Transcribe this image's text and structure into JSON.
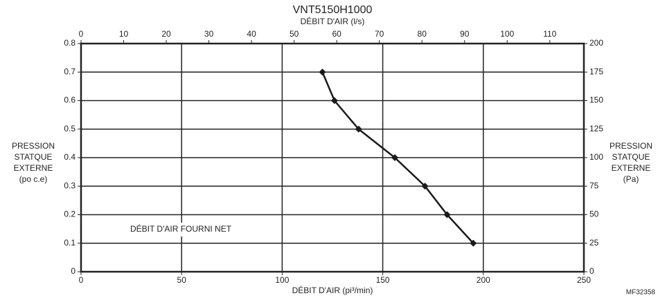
{
  "chart_data": {
    "type": "line",
    "title": "VNT5150H1000",
    "xlabel": "DÉBIT D'AIR (pi³/min)",
    "x2label": "DÉBIT D'AIR (l/s)",
    "ylabel": [
      "PRESSION",
      "STATQUE",
      "EXTERNE",
      "(po c.e)"
    ],
    "y2label": [
      "PRESSION",
      "STATQUE",
      "EXTERNE",
      "(Pa)"
    ],
    "annotation": "DÉBIT D'AIR FOURNI NET",
    "code": "MF32358",
    "x": [
      120,
      126,
      138,
      156,
      171,
      182,
      195
    ],
    "values": [
      0.7,
      0.6,
      0.5,
      0.4,
      0.3,
      0.2,
      0.1
    ],
    "color": "#1a1a1a",
    "xlim": [
      0,
      250
    ],
    "xticks": [
      0,
      50,
      100,
      150,
      200,
      250
    ],
    "x2lim": [
      0,
      118
    ],
    "x2ticks": [
      0,
      10,
      20,
      30,
      40,
      50,
      60,
      70,
      80,
      90,
      100,
      110
    ],
    "ylim": [
      0,
      0.8
    ],
    "yticks": [
      0,
      0.1,
      0.2,
      0.3,
      0.4,
      0.5,
      0.6,
      0.7,
      0.8
    ],
    "y2lim": [
      0,
      200
    ],
    "y2ticks": [
      0,
      25,
      50,
      75,
      100,
      125,
      150,
      175,
      200
    ],
    "grid": true
  }
}
